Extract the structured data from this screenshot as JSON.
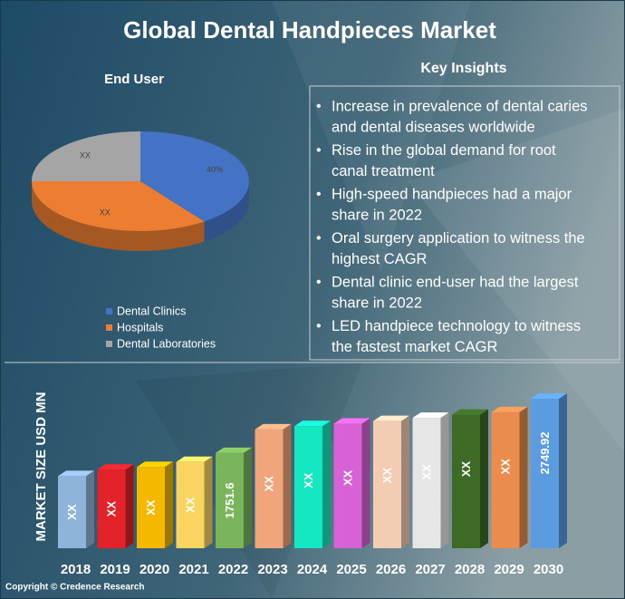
{
  "title": "Global Dental Handpieces Market",
  "chart_data": [
    {
      "type": "pie",
      "title": "End User",
      "categories": [
        "Dental Clinics",
        "Hospitals",
        "Dental Laboratories"
      ],
      "values": [
        40,
        35,
        25
      ],
      "value_labels": [
        "40%",
        "XX",
        "XX"
      ],
      "colors": [
        "#4472c4",
        "#ed7d31",
        "#a5a5a5"
      ]
    },
    {
      "type": "bar",
      "y_label": "MARKET SIZE USD MN",
      "categories": [
        "2018",
        "2019",
        "2020",
        "2021",
        "2022",
        "2023",
        "2024",
        "2025",
        "2026",
        "2027",
        "2028",
        "2029",
        "2030"
      ],
      "values": [
        1328,
        1445,
        1493,
        1587,
        1751.6,
        2186,
        2245,
        2292,
        2339,
        2398,
        2456,
        2503,
        2749.92
      ],
      "value_labels": [
        "XX",
        "XX",
        "XX",
        "XX",
        "1751.6",
        "XX",
        "XX",
        "XX",
        "XX",
        "XX",
        "XX",
        "XX",
        "2749.92"
      ],
      "colors": [
        "#8fb4d9",
        "#e3222a",
        "#f5b800",
        "#f9d55f",
        "#7ab55c",
        "#f0a57a",
        "#14e8c1",
        "#d662d6",
        "#f3cdb3",
        "#e6e6e6",
        "#3d6b25",
        "#e98c4e",
        "#5b9be0"
      ]
    }
  ],
  "key_insights": {
    "title": "Key Insights",
    "items": [
      [
        "Increase in prevalence of dental caries",
        "and dental diseases worldwide"
      ],
      [
        "Rise in the global demand for root",
        "canal treatment"
      ],
      [
        "High-speed handpieces had a major",
        "share in 2022"
      ],
      [
        "Oral surgery application to witness the",
        "highest CAGR"
      ],
      [
        "Dental clinic end-user had the largest",
        "share in 2022"
      ],
      [
        "LED handpiece technology to witness",
        "the fastest market CAGR"
      ]
    ]
  },
  "copyright": "Copyright © Credence Research"
}
